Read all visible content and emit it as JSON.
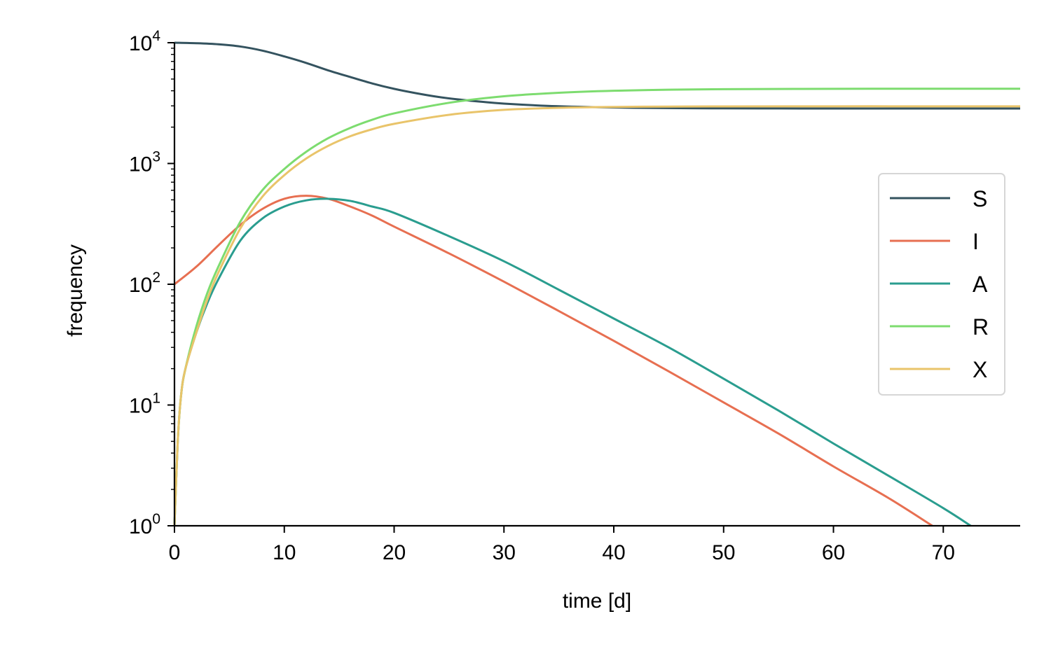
{
  "chart_data": {
    "type": "line",
    "title": "",
    "xlabel": "time [d]",
    "ylabel": "frequency",
    "xlim": [
      0,
      77
    ],
    "ylim": [
      1,
      10000
    ],
    "yscale": "log",
    "grid": false,
    "legend_position": "center-right",
    "x_ticks": [
      "0",
      "10",
      "20",
      "30",
      "40",
      "50",
      "60",
      "70"
    ],
    "y_ticks": [
      {
        "base": "10",
        "exp": "0"
      },
      {
        "base": "10",
        "exp": "1"
      },
      {
        "base": "10",
        "exp": "2"
      },
      {
        "base": "10",
        "exp": "3"
      },
      {
        "base": "10",
        "exp": "4"
      }
    ],
    "series": [
      {
        "name": "S",
        "color": "#34535f",
        "x": [
          0,
          2,
          4,
          6,
          8,
          10,
          12,
          14,
          16,
          18,
          20,
          22,
          24,
          26,
          28,
          30,
          34,
          38,
          42,
          46,
          50,
          55,
          60,
          65,
          70,
          77
        ],
        "y": [
          10000,
          9900,
          9700,
          9300,
          8600,
          7700,
          6800,
          5900,
          5200,
          4600,
          4150,
          3820,
          3560,
          3380,
          3240,
          3130,
          3000,
          2930,
          2890,
          2870,
          2860,
          2855,
          2850,
          2850,
          2850,
          2850
        ]
      },
      {
        "name": "I",
        "color": "#e76f51",
        "x": [
          0,
          2,
          4,
          6,
          8,
          10,
          12,
          14,
          16,
          18,
          20,
          25,
          30,
          35,
          40,
          45,
          50,
          55,
          60,
          65,
          69
        ],
        "y": [
          100,
          140,
          210,
          310,
          420,
          510,
          540,
          510,
          440,
          370,
          300,
          180,
          105,
          60,
          34,
          19,
          10.5,
          5.8,
          3.1,
          1.7,
          1.0
        ]
      },
      {
        "name": "A",
        "color": "#2a9d8f",
        "x": [
          0,
          0.3,
          0.6,
          1,
          2,
          3,
          4,
          6,
          8,
          10,
          12,
          14,
          16,
          18,
          20,
          25,
          30,
          35,
          40,
          45,
          50,
          55,
          60,
          65,
          70,
          72.5
        ],
        "y": [
          1,
          5,
          12,
          20,
          40,
          70,
          110,
          230,
          350,
          440,
          495,
          510,
          490,
          440,
          390,
          250,
          155,
          90,
          52,
          30,
          16.5,
          9,
          4.8,
          2.6,
          1.4,
          1.0
        ]
      },
      {
        "name": "R",
        "color": "#7ddc6f",
        "x": [
          0,
          0.3,
          0.6,
          1,
          2,
          3,
          4,
          6,
          8,
          10,
          12,
          14,
          16,
          18,
          20,
          25,
          30,
          35,
          40,
          45,
          50,
          60,
          70,
          77
        ],
        "y": [
          1,
          5,
          12,
          20,
          45,
          85,
          140,
          330,
          600,
          900,
          1250,
          1620,
          1970,
          2300,
          2600,
          3180,
          3600,
          3850,
          4000,
          4080,
          4120,
          4150,
          4160,
          4160
        ]
      },
      {
        "name": "X",
        "color": "#e9c46a",
        "x": [
          0,
          0.3,
          0.6,
          1,
          2,
          3,
          4,
          6,
          8,
          10,
          12,
          14,
          16,
          18,
          20,
          25,
          30,
          35,
          40,
          45,
          50,
          60,
          70,
          77
        ],
        "y": [
          1,
          5,
          12,
          20,
          40,
          75,
          125,
          290,
          530,
          800,
          1100,
          1400,
          1680,
          1920,
          2130,
          2530,
          2780,
          2890,
          2940,
          2960,
          2970,
          2975,
          2975,
          2975
        ]
      }
    ]
  }
}
